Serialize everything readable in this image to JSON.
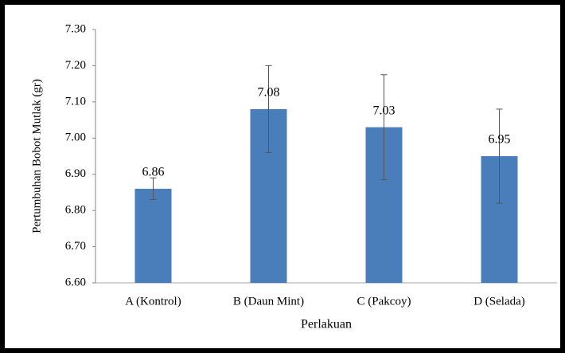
{
  "chart_data": {
    "type": "bar",
    "ylabel": "Pertumbuhan Bobot Mutlak (gr)",
    "xlabel": "Perlakuan",
    "categories": [
      "A (Kontrol)",
      "B (Daun Mint)",
      "C (Pakcoy)",
      "D (Selada)"
    ],
    "values": [
      6.86,
      7.08,
      7.03,
      6.95
    ],
    "errors": [
      0.03,
      0.12,
      0.145,
      0.13
    ],
    "color": "#4a7ebb",
    "ylim": [
      6.6,
      7.3
    ],
    "yticks": [
      {
        "value": 6.6,
        "label": "6.60"
      },
      {
        "value": 6.7,
        "label": "6.70"
      },
      {
        "value": 6.8,
        "label": "6.80"
      },
      {
        "value": 6.9,
        "label": "6.90"
      },
      {
        "value": 7.0,
        "label": "7.00"
      },
      {
        "value": 7.1,
        "label": "7.10"
      },
      {
        "value": 7.2,
        "label": "7.20"
      },
      {
        "value": 7.3,
        "label": "7.30"
      }
    ],
    "grid": false
  }
}
